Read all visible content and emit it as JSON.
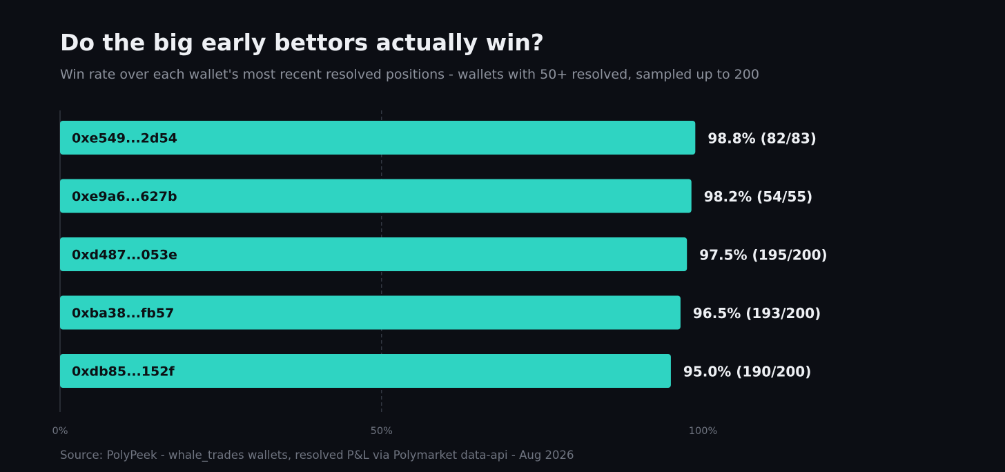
{
  "header": {
    "title": "Do the big early bettors actually win?",
    "subtitle": "Win rate over each wallet's most recent resolved positions - wallets with 50+ resolved, sampled up to 200"
  },
  "footer": {
    "source": "Source: PolyPeek - whale_trades wallets, resolved P&L via Polymarket data-api - Aug 2026"
  },
  "colors": {
    "background": "#0c0e14",
    "bar": "#2fd4c2",
    "axis": "#3a3f4a",
    "gridline": "#3a3f4a"
  },
  "chart_data": {
    "type": "bar",
    "orientation": "horizontal",
    "categories": [
      "0xe549...2d54",
      "0xe9a6...627b",
      "0xd487...053e",
      "0xba38...fb57",
      "0xdb85...152f"
    ],
    "values": [
      98.8,
      98.2,
      97.5,
      96.5,
      95.0
    ],
    "value_labels": [
      "98.8% (82/83)",
      "98.2% (54/55)",
      "97.5% (195/200)",
      "96.5% (193/200)",
      "95.0% (190/200)"
    ],
    "xlim": [
      0,
      100
    ],
    "x_ticks": [
      0,
      50,
      100
    ],
    "x_tick_labels": [
      "0%",
      "50%",
      "100%"
    ],
    "gridlines": [
      50
    ],
    "grid": "dashed vertical at 50%"
  }
}
